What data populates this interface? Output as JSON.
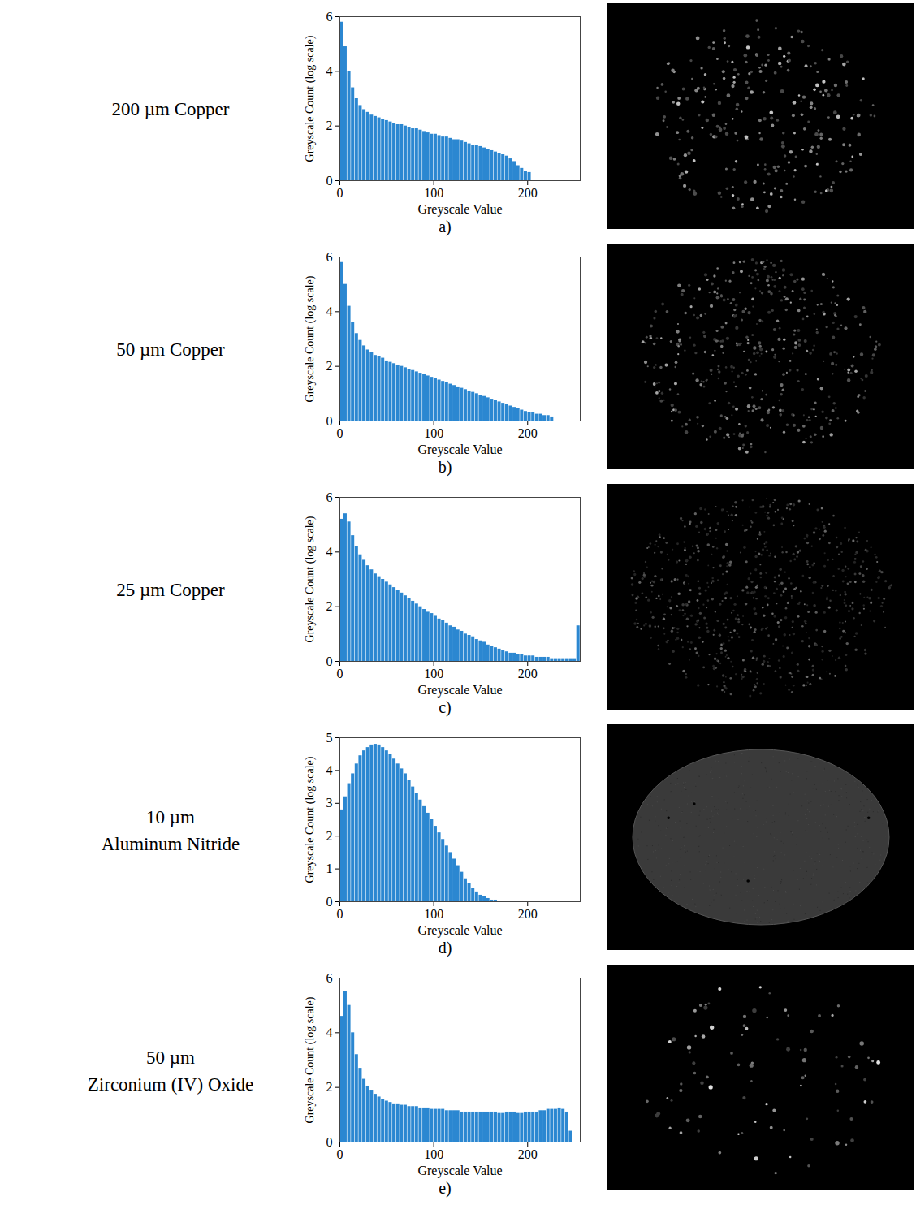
{
  "chart_data": [
    {
      "type": "histogram",
      "title": "200 µm Copper",
      "caption": "a)",
      "x_label": "Greyscale Value",
      "y_label": "Greyscale Count (log scale)",
      "color": "#2b87d1",
      "bins": [
        0,
        4,
        8,
        12,
        16,
        20,
        24,
        28,
        32,
        36,
        40,
        44,
        48,
        52,
        56,
        60,
        64,
        68,
        72,
        76,
        80,
        84,
        88,
        92,
        96,
        100,
        104,
        108,
        112,
        116,
        120,
        124,
        128,
        132,
        136,
        140,
        144,
        148,
        152,
        156,
        160,
        164,
        168,
        172,
        176,
        180,
        184,
        188,
        192,
        196,
        200,
        204,
        208,
        212,
        216,
        220,
        224,
        228,
        232,
        236,
        240,
        244,
        248,
        252,
        256
      ],
      "counts": [
        5.8,
        4.9,
        4.0,
        3.4,
        3.0,
        2.75,
        2.6,
        2.5,
        2.4,
        2.35,
        2.3,
        2.25,
        2.2,
        2.15,
        2.1,
        2.05,
        2.05,
        2.0,
        1.95,
        1.9,
        1.9,
        1.85,
        1.8,
        1.75,
        1.7,
        1.7,
        1.65,
        1.6,
        1.6,
        1.55,
        1.5,
        1.5,
        1.45,
        1.4,
        1.35,
        1.3,
        1.3,
        1.25,
        1.2,
        1.15,
        1.1,
        1.05,
        1.0,
        0.95,
        0.9,
        0.8,
        0.7,
        0.55,
        0.45,
        0.35,
        0.3,
        0,
        0,
        0,
        0,
        0,
        0,
        0,
        0,
        0,
        0,
        0,
        0,
        0
      ],
      "xlim": [
        0,
        256
      ],
      "xticks": [
        0,
        100,
        200
      ],
      "ylim": [
        0,
        6
      ],
      "yticks": [
        0,
        2,
        4,
        6
      ]
    },
    {
      "type": "histogram",
      "title": "50 µm Copper",
      "caption": "b)",
      "x_label": "Greyscale Value",
      "y_label": "Greyscale Count (log scale)",
      "color": "#2b87d1",
      "bins": [
        0,
        4,
        8,
        12,
        16,
        20,
        24,
        28,
        32,
        36,
        40,
        44,
        48,
        52,
        56,
        60,
        64,
        68,
        72,
        76,
        80,
        84,
        88,
        92,
        96,
        100,
        104,
        108,
        112,
        116,
        120,
        124,
        128,
        132,
        136,
        140,
        144,
        148,
        152,
        156,
        160,
        164,
        168,
        172,
        176,
        180,
        184,
        188,
        192,
        196,
        200,
        204,
        208,
        212,
        216,
        220,
        224,
        228,
        232,
        236,
        240,
        244,
        248,
        252,
        256
      ],
      "counts": [
        5.8,
        5.0,
        4.2,
        3.6,
        3.2,
        2.95,
        2.75,
        2.6,
        2.5,
        2.4,
        2.35,
        2.3,
        2.2,
        2.15,
        2.1,
        2.05,
        2.0,
        1.95,
        1.9,
        1.85,
        1.8,
        1.75,
        1.7,
        1.65,
        1.6,
        1.55,
        1.5,
        1.45,
        1.4,
        1.35,
        1.3,
        1.25,
        1.2,
        1.15,
        1.1,
        1.05,
        1.0,
        0.95,
        0.9,
        0.85,
        0.8,
        0.75,
        0.7,
        0.65,
        0.6,
        0.55,
        0.5,
        0.45,
        0.4,
        0.35,
        0.3,
        0.3,
        0.25,
        0.25,
        0.2,
        0.2,
        0.15,
        0,
        0,
        0,
        0,
        0,
        0,
        0
      ],
      "xlim": [
        0,
        256
      ],
      "xticks": [
        0,
        100,
        200
      ],
      "ylim": [
        0,
        6
      ],
      "yticks": [
        0,
        2,
        4,
        6
      ]
    },
    {
      "type": "histogram",
      "title": "25 µm Copper",
      "caption": "c)",
      "x_label": "Greyscale Value",
      "y_label": "Greyscale Count (log scale)",
      "color": "#2b87d1",
      "bins": [
        0,
        4,
        8,
        12,
        16,
        20,
        24,
        28,
        32,
        36,
        40,
        44,
        48,
        52,
        56,
        60,
        64,
        68,
        72,
        76,
        80,
        84,
        88,
        92,
        96,
        100,
        104,
        108,
        112,
        116,
        120,
        124,
        128,
        132,
        136,
        140,
        144,
        148,
        152,
        156,
        160,
        164,
        168,
        172,
        176,
        180,
        184,
        188,
        192,
        196,
        200,
        204,
        208,
        212,
        216,
        220,
        224,
        228,
        232,
        236,
        240,
        244,
        248,
        252,
        256
      ],
      "counts": [
        5.2,
        5.4,
        5.1,
        4.6,
        4.2,
        3.9,
        3.7,
        3.5,
        3.35,
        3.2,
        3.1,
        3.0,
        2.9,
        2.8,
        2.7,
        2.6,
        2.5,
        2.4,
        2.3,
        2.2,
        2.1,
        2.0,
        1.9,
        1.8,
        1.75,
        1.65,
        1.55,
        1.5,
        1.4,
        1.3,
        1.25,
        1.15,
        1.1,
        1.0,
        0.95,
        0.9,
        0.8,
        0.75,
        0.7,
        0.6,
        0.55,
        0.5,
        0.45,
        0.4,
        0.35,
        0.3,
        0.3,
        0.25,
        0.25,
        0.2,
        0.2,
        0.2,
        0.15,
        0.15,
        0.15,
        0.15,
        0.1,
        0.1,
        0.1,
        0.1,
        0.1,
        0.1,
        0.1,
        1.3
      ],
      "xlim": [
        0,
        256
      ],
      "xticks": [
        0,
        100,
        200
      ],
      "ylim": [
        0,
        6
      ],
      "yticks": [
        0,
        2,
        4,
        6
      ]
    },
    {
      "type": "histogram",
      "title": "10 µm\nAluminum Nitride",
      "caption": "d)",
      "x_label": "Greyscale Value",
      "y_label": "Greyscale Count (log scale)",
      "color": "#2b87d1",
      "bins": [
        0,
        4,
        8,
        12,
        16,
        20,
        24,
        28,
        32,
        36,
        40,
        44,
        48,
        52,
        56,
        60,
        64,
        68,
        72,
        76,
        80,
        84,
        88,
        92,
        96,
        100,
        104,
        108,
        112,
        116,
        120,
        124,
        128,
        132,
        136,
        140,
        144,
        148,
        152,
        156,
        160,
        164,
        168,
        172,
        176,
        180,
        184,
        188,
        192,
        196,
        200,
        204,
        208,
        212,
        216,
        220,
        224,
        228,
        232,
        236,
        240,
        244,
        248,
        252,
        256
      ],
      "counts": [
        2.8,
        3.2,
        3.6,
        3.9,
        4.2,
        4.45,
        4.6,
        4.7,
        4.78,
        4.8,
        4.78,
        4.7,
        4.6,
        4.5,
        4.35,
        4.2,
        4.05,
        3.9,
        3.7,
        3.5,
        3.3,
        3.1,
        2.9,
        2.7,
        2.5,
        2.3,
        2.1,
        1.9,
        1.7,
        1.5,
        1.3,
        1.1,
        0.9,
        0.7,
        0.55,
        0.4,
        0.3,
        0.2,
        0.15,
        0.1,
        0.05,
        0.05,
        0,
        0,
        0,
        0,
        0,
        0,
        0,
        0,
        0,
        0,
        0,
        0,
        0,
        0,
        0,
        0,
        0,
        0,
        0,
        0,
        0,
        0
      ],
      "xlim": [
        0,
        256
      ],
      "xticks": [
        0,
        100,
        200
      ],
      "ylim": [
        0,
        5
      ],
      "yticks": [
        0,
        1,
        2,
        3,
        4,
        5
      ]
    },
    {
      "type": "histogram",
      "title": "50 µm\nZirconium (IV) Oxide",
      "caption": "e)",
      "x_label": "Greyscale Value",
      "y_label": "Greyscale Count (log scale)",
      "color": "#2b87d1",
      "bins": [
        0,
        4,
        8,
        12,
        16,
        20,
        24,
        28,
        32,
        36,
        40,
        44,
        48,
        52,
        56,
        60,
        64,
        68,
        72,
        76,
        80,
        84,
        88,
        92,
        96,
        100,
        104,
        108,
        112,
        116,
        120,
        124,
        128,
        132,
        136,
        140,
        144,
        148,
        152,
        156,
        160,
        164,
        168,
        172,
        176,
        180,
        184,
        188,
        192,
        196,
        200,
        204,
        208,
        212,
        216,
        220,
        224,
        228,
        232,
        236,
        240,
        244,
        248,
        252,
        256
      ],
      "counts": [
        4.6,
        5.5,
        5.0,
        4.0,
        3.2,
        2.7,
        2.3,
        2.05,
        1.9,
        1.75,
        1.65,
        1.55,
        1.5,
        1.45,
        1.4,
        1.4,
        1.35,
        1.35,
        1.3,
        1.3,
        1.3,
        1.25,
        1.25,
        1.25,
        1.2,
        1.2,
        1.2,
        1.2,
        1.15,
        1.15,
        1.15,
        1.15,
        1.1,
        1.1,
        1.1,
        1.1,
        1.1,
        1.1,
        1.1,
        1.1,
        1.1,
        1.1,
        1.05,
        1.05,
        1.1,
        1.1,
        1.1,
        1.05,
        1.05,
        1.1,
        1.1,
        1.1,
        1.1,
        1.15,
        1.15,
        1.2,
        1.2,
        1.2,
        1.25,
        1.2,
        1.1,
        0.4,
        0,
        0
      ],
      "xlim": [
        0,
        256
      ],
      "xticks": [
        0,
        100,
        200
      ],
      "ylim": [
        0,
        6
      ],
      "yticks": [
        0,
        2,
        4,
        6
      ]
    }
  ]
}
